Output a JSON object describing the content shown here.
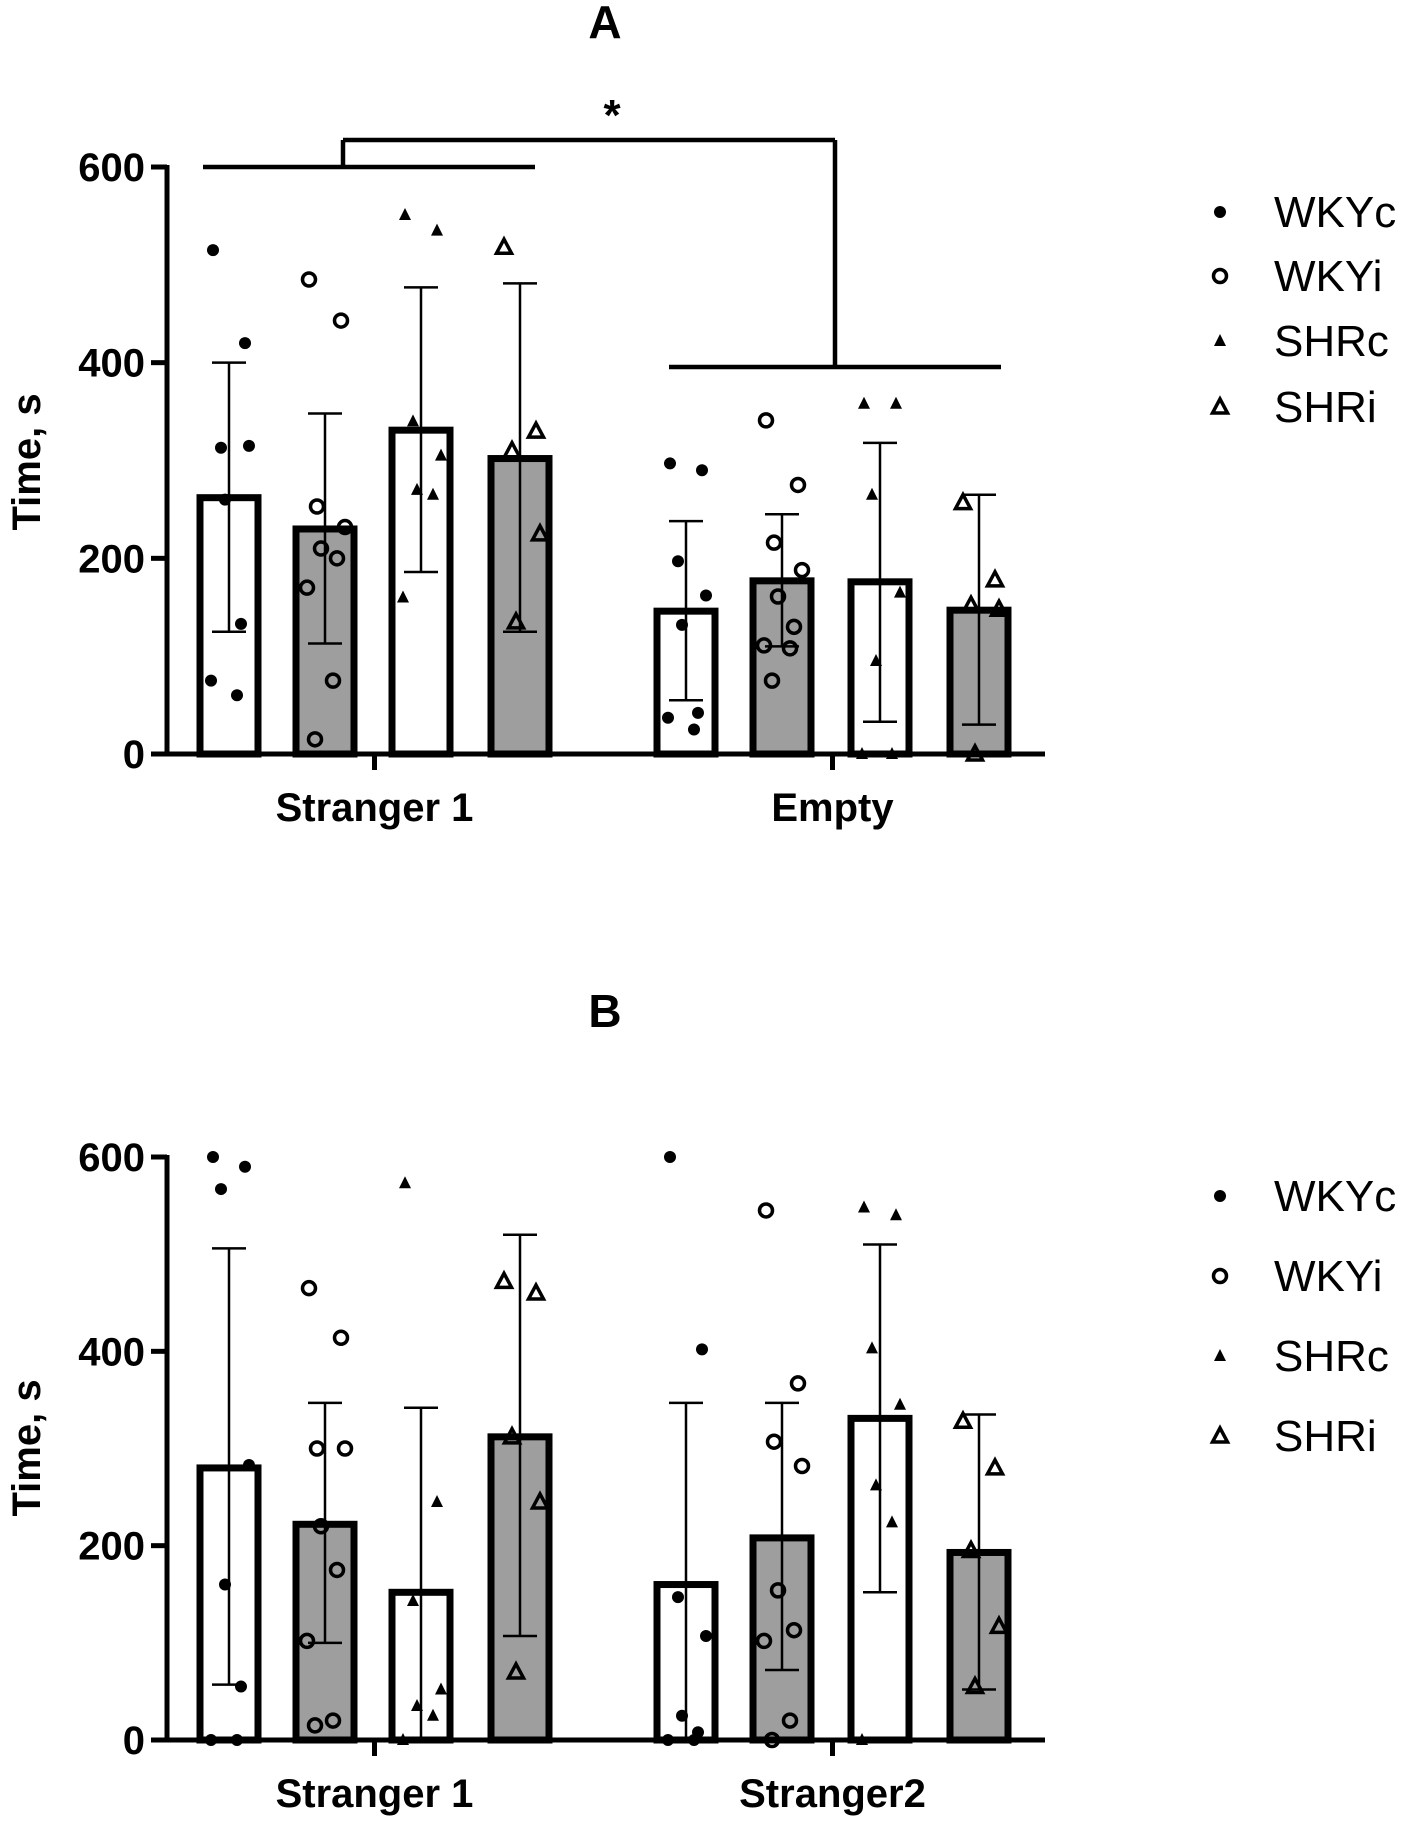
{
  "chart_data": [
    {
      "type": "bar",
      "panel_label": "A",
      "ylabel": "Time, s",
      "ylim": [
        0,
        600
      ],
      "yticks": [
        "0",
        "200",
        "400",
        "600"
      ],
      "categories": [
        "Stranger 1",
        "Empty"
      ],
      "legend": [
        "WKYc",
        "WKYi",
        "SHRc",
        "SHRi"
      ],
      "significance": "*",
      "series": [
        {
          "name": "WKYc",
          "fill": "#ffffff",
          "marker": "dot",
          "values": [
            262,
            146
          ],
          "sd_low": [
            125,
            55
          ],
          "sd_high": [
            400,
            238
          ],
          "points": [
            [
              515,
              420,
              313,
              315,
              260,
              133,
              75,
              60
            ],
            [
              297,
              290,
              197,
              162,
              132,
              42,
              37,
              25
            ]
          ]
        },
        {
          "name": "WKYi",
          "fill": "#9e9e9e",
          "marker": "circle",
          "values": [
            230,
            177
          ],
          "sd_low": [
            113,
            110
          ],
          "sd_high": [
            348,
            245
          ],
          "points": [
            [
              485,
              443,
              253,
              232,
              210,
              200,
              170,
              75,
              15
            ],
            [
              341,
              275,
              216,
              188,
              161,
              130,
              111,
              108,
              75
            ]
          ]
        },
        {
          "name": "SHRc",
          "fill": "#ffffff",
          "marker": "triangle",
          "values": [
            331,
            176
          ],
          "sd_low": [
            186,
            33
          ],
          "sd_high": [
            477,
            318
          ],
          "points": [
            [
              551,
              535,
              340,
              305,
              270,
              265,
              160
            ],
            [
              358,
              358,
              265,
              165,
              95,
              0,
              0
            ]
          ]
        },
        {
          "name": "SHRi",
          "fill": "#9e9e9e",
          "marker": "open-triangle",
          "values": [
            302,
            147
          ],
          "sd_low": [
            125,
            30
          ],
          "sd_high": [
            481,
            265
          ],
          "points": [
            [
              518,
              330,
              310,
              225,
              135
            ],
            [
              257,
              178,
              152,
              148,
              0
            ]
          ]
        }
      ]
    },
    {
      "type": "bar",
      "panel_label": "B",
      "ylabel": "Time, s",
      "ylim": [
        0,
        600
      ],
      "yticks": [
        "0",
        "200",
        "400",
        "600"
      ],
      "categories": [
        "Stranger 1",
        "Stranger2"
      ],
      "legend": [
        "WKYc",
        "WKYi",
        "SHRc",
        "SHRi"
      ],
      "series": [
        {
          "name": "WKYc",
          "fill": "#ffffff",
          "marker": "dot",
          "values": [
            280,
            160
          ],
          "sd_low": [
            57,
            0
          ],
          "sd_high": [
            506,
            347
          ],
          "points": [
            [
              600,
              590,
              567,
              283,
              160,
              55,
              0,
              0
            ],
            [
              600,
              402,
              147,
              107,
              25,
              8,
              0,
              0
            ]
          ]
        },
        {
          "name": "WKYi",
          "fill": "#9e9e9e",
          "marker": "circle",
          "values": [
            222,
            208
          ],
          "sd_low": [
            100,
            72
          ],
          "sd_high": [
            347,
            347
          ],
          "points": [
            [
              465,
              414,
              300,
              300,
              220,
              175,
              102,
              20,
              15
            ],
            [
              545,
              367,
              307,
              282,
              154,
              113,
              102,
              20,
              0
            ]
          ]
        },
        {
          "name": "SHRc",
          "fill": "#ffffff",
          "marker": "triangle",
          "values": [
            152,
            331
          ],
          "sd_low": [
            0,
            152
          ],
          "sd_high": [
            342,
            510
          ],
          "points": [
            [
              573,
              245,
              143,
              52,
              35,
              25,
              0
            ],
            [
              548,
              540,
              403,
              345,
              262,
              224,
              0
            ]
          ]
        },
        {
          "name": "SHRi",
          "fill": "#9e9e9e",
          "marker": "open-triangle",
          "values": [
            312,
            193
          ],
          "sd_low": [
            107,
            52
          ],
          "sd_high": [
            520,
            335
          ],
          "points": [
            [
              472,
              460,
              312,
              245,
              70
            ],
            [
              328,
              280,
              195,
              117,
              55
            ]
          ]
        }
      ]
    }
  ]
}
